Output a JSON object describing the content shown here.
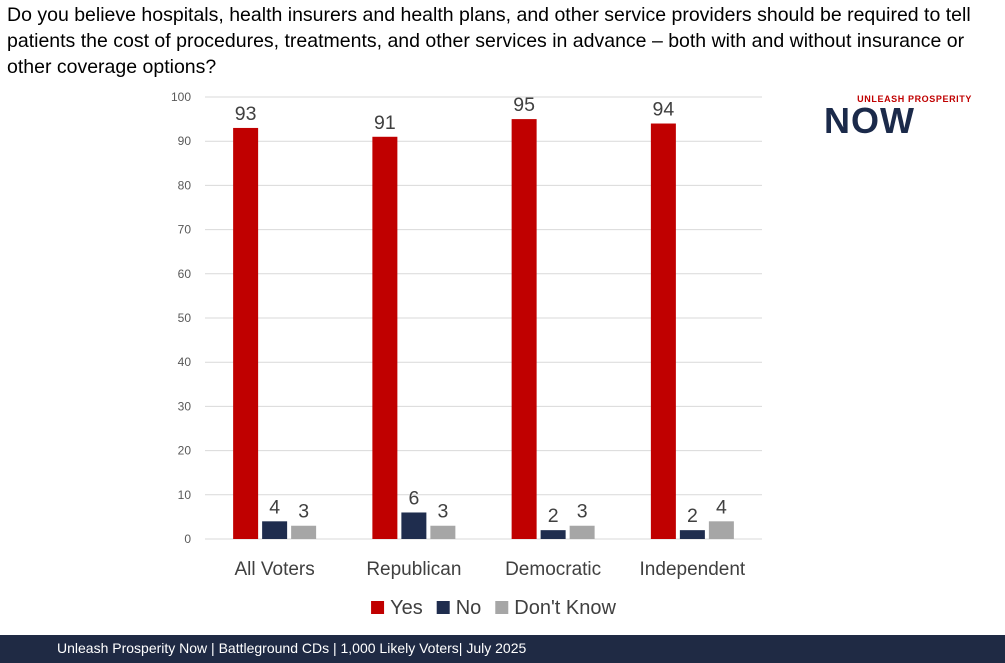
{
  "question": "Do you believe hospitals, health insurers and health plans, and other service providers should be required to tell patients the cost of procedures, treatments, and other services in advance – both with and without insurance or other coverage options?",
  "logo": {
    "top_text": "UNLEASH PROSPERITY",
    "main_text": "NOW"
  },
  "footer": {
    "text": "Unleash Prosperity Now | Battleground CDs | 1,000 Likely Voters| July 2025"
  },
  "colors": {
    "yes": "#c00000",
    "no": "#1f2d4e",
    "dont_know": "#a6a6a6",
    "grid": "#d9d9d9",
    "footer_bg": "#1f2a44",
    "brand_red": "#c00000",
    "brand_navy": "#1b2a4a"
  },
  "chart_data": {
    "type": "bar",
    "title": "",
    "xlabel": "",
    "ylabel": "",
    "ylim": [
      0,
      100
    ],
    "yticks": [
      0,
      10,
      20,
      30,
      40,
      50,
      60,
      70,
      80,
      90,
      100
    ],
    "grid": true,
    "legend_position": "bottom",
    "categories": [
      "All Voters",
      "Republican",
      "Democratic",
      "Independent"
    ],
    "series": [
      {
        "name": "Yes",
        "values": [
          93,
          91,
          95,
          94
        ],
        "color": "#c00000"
      },
      {
        "name": "No",
        "values": [
          4,
          6,
          2,
          2
        ],
        "color": "#1f2d4e"
      },
      {
        "name": "Don't Know",
        "values": [
          3,
          3,
          3,
          4
        ],
        "color": "#a6a6a6"
      }
    ]
  }
}
